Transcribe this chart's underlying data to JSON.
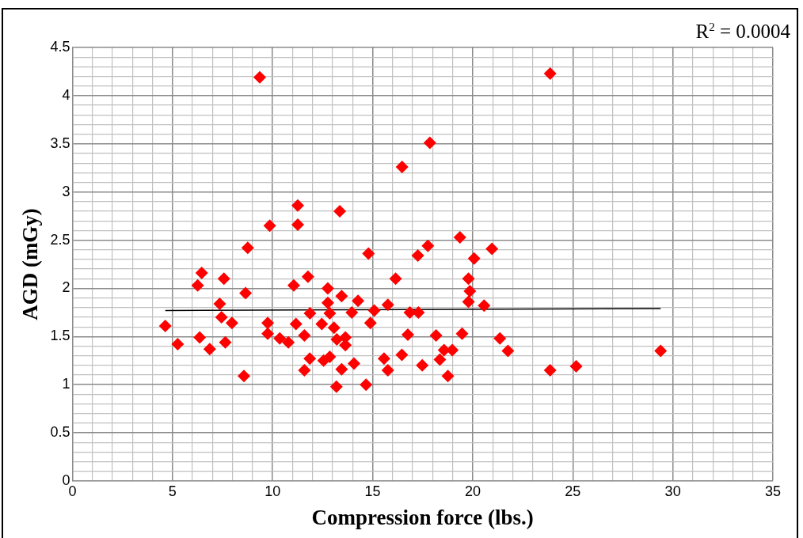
{
  "chart_data": {
    "type": "scatter",
    "xlabel": "Compression force (lbs.)",
    "ylabel": "AGD (mGy)",
    "annotations": [
      "R$^{2}$ = 0.0004"
    ],
    "xlim": [
      0,
      35
    ],
    "ylim": [
      0,
      4.5
    ],
    "xticks": [
      0,
      {
        "value": 1,
        "label": null
      },
      {
        "value": 2,
        "label": null
      },
      {
        "value": 3,
        "label": null
      },
      {
        "value": 4,
        "label": null
      },
      5,
      {
        "value": 6,
        "label": null
      },
      {
        "value": 7,
        "label": null
      },
      {
        "value": 8,
        "label": null
      },
      {
        "value": 9,
        "label": null
      },
      10,
      {
        "value": 11,
        "label": null
      },
      {
        "value": 12,
        "label": null
      },
      {
        "value": 13,
        "label": null
      },
      {
        "value": 14,
        "label": null
      },
      15,
      {
        "value": 16,
        "label": null
      },
      {
        "value": 17,
        "label": null
      },
      {
        "value": 18,
        "label": null
      },
      {
        "value": 19,
        "label": null
      },
      20,
      {
        "value": 21,
        "label": null
      },
      {
        "value": 22,
        "label": null
      },
      {
        "value": 23,
        "label": null
      },
      {
        "value": 24,
        "label": null
      },
      25,
      {
        "value": 26,
        "label": null
      },
      {
        "value": 27,
        "label": null
      },
      {
        "value": 28,
        "label": null
      },
      {
        "value": 29,
        "label": null
      },
      30,
      {
        "value": 31,
        "label": null
      },
      {
        "value": 32,
        "label": null
      },
      {
        "value": 33,
        "label": null
      },
      {
        "value": 34,
        "label": null
      },
      35
    ],
    "yticks": [
      0,
      {
        "value": 0.1,
        "label": null
      },
      {
        "value": 0.2,
        "label": null
      },
      {
        "value": 0.3,
        "label": null
      },
      {
        "value": 0.4,
        "label": null
      },
      0.5,
      {
        "value": 0.6,
        "label": null
      },
      {
        "value": 0.7,
        "label": null
      },
      {
        "value": 0.8,
        "label": null
      },
      {
        "value": 0.9,
        "label": null
      },
      1,
      {
        "value": 1.1,
        "label": null
      },
      {
        "value": 1.2,
        "label": null
      },
      {
        "value": 1.3,
        "label": null
      },
      {
        "value": 1.4,
        "label": null
      },
      1.5,
      {
        "value": 1.6,
        "label": null
      },
      {
        "value": 1.7,
        "label": null
      },
      {
        "value": 1.8,
        "label": null
      },
      {
        "value": 1.9,
        "label": null
      },
      2,
      {
        "value": 2.1,
        "label": null
      },
      {
        "value": 2.2,
        "label": null
      },
      {
        "value": 2.3,
        "label": null
      },
      {
        "value": 2.4,
        "label": null
      },
      2.5,
      {
        "value": 2.6,
        "label": null
      },
      {
        "value": 2.7,
        "label": null
      },
      {
        "value": 2.8,
        "label": null
      },
      {
        "value": 2.9,
        "label": null
      },
      3,
      {
        "value": 3.1,
        "label": null
      },
      {
        "value": 3.2,
        "label": null
      },
      {
        "value": 3.3,
        "label": null
      },
      {
        "value": 3.4,
        "label": null
      },
      3.5,
      {
        "value": 3.6,
        "label": null
      },
      {
        "value": 3.7,
        "label": null
      },
      {
        "value": 3.8,
        "label": null
      },
      {
        "value": 3.9,
        "label": null
      },
      4,
      {
        "value": 4.1,
        "label": null
      },
      {
        "value": 4.2,
        "label": null
      },
      {
        "value": 4.3,
        "label": null
      },
      {
        "value": 4.4,
        "label": null
      },
      4.5
    ],
    "grid": true,
    "legend": false,
    "marker": "diamond",
    "series": [
      {
        "color": "#ff0000",
        "x": [
          9.36,
          11.26,
          13.36,
          9.86,
          11.26,
          8.76,
          14.79,
          6.46,
          6.26,
          7.57,
          8.65,
          11.77,
          11.06,
          12.76,
          12.76,
          13.45,
          14.27,
          7.36,
          7.45,
          7.97,
          4.64,
          11.87,
          12.86,
          13.96,
          15.08,
          9.76,
          9.76,
          11.17,
          12.46,
          13.07,
          14.89,
          11.59,
          10.36,
          10.79,
          13.21,
          13.64,
          13.64,
          6.36,
          5.26,
          7.64,
          6.86,
          11.86,
          12.55,
          12.86,
          11.59,
          13.45,
          14.07,
          15.57,
          8.57,
          13.19,
          14.67,
          23.87,
          17.86,
          16.47,
          19.36,
          17.76,
          17.26,
          20.96,
          20.07,
          16.15,
          19.79,
          19.86,
          19.79,
          20.57,
          15.76,
          16.86,
          17.29,
          16.76,
          18.17,
          19.47,
          21.36,
          21.76,
          16.46,
          18.57,
          18.98,
          18.36,
          17.48,
          15.76,
          18.76,
          23.87,
          29.39,
          25.17
        ],
        "values": [
          4.19,
          2.86,
          2.8,
          2.65,
          2.66,
          2.42,
          2.36,
          2.16,
          2.03,
          2.1,
          1.95,
          2.12,
          2.03,
          2.0,
          1.85,
          1.92,
          1.87,
          1.84,
          1.7,
          1.64,
          1.61,
          1.74,
          1.74,
          1.75,
          1.77,
          1.64,
          1.53,
          1.63,
          1.63,
          1.59,
          1.64,
          1.51,
          1.48,
          1.44,
          1.47,
          1.49,
          1.41,
          1.49,
          1.42,
          1.44,
          1.37,
          1.27,
          1.25,
          1.29,
          1.15,
          1.16,
          1.22,
          1.27,
          1.09,
          0.98,
          1.0,
          4.23,
          3.51,
          3.26,
          2.53,
          2.44,
          2.34,
          2.41,
          2.31,
          2.1,
          2.1,
          1.97,
          1.86,
          1.82,
          1.83,
          1.75,
          1.75,
          1.52,
          1.51,
          1.53,
          1.48,
          1.35,
          1.31,
          1.36,
          1.36,
          1.26,
          1.2,
          1.15,
          1.09,
          1.15,
          1.35,
          1.19
        ]
      },
      {
        "type": "line",
        "marker": "none",
        "color": "#000000",
        "x": [
          4.64,
          29.39
        ],
        "values": [
          1.77,
          1.79
        ]
      }
    ]
  }
}
